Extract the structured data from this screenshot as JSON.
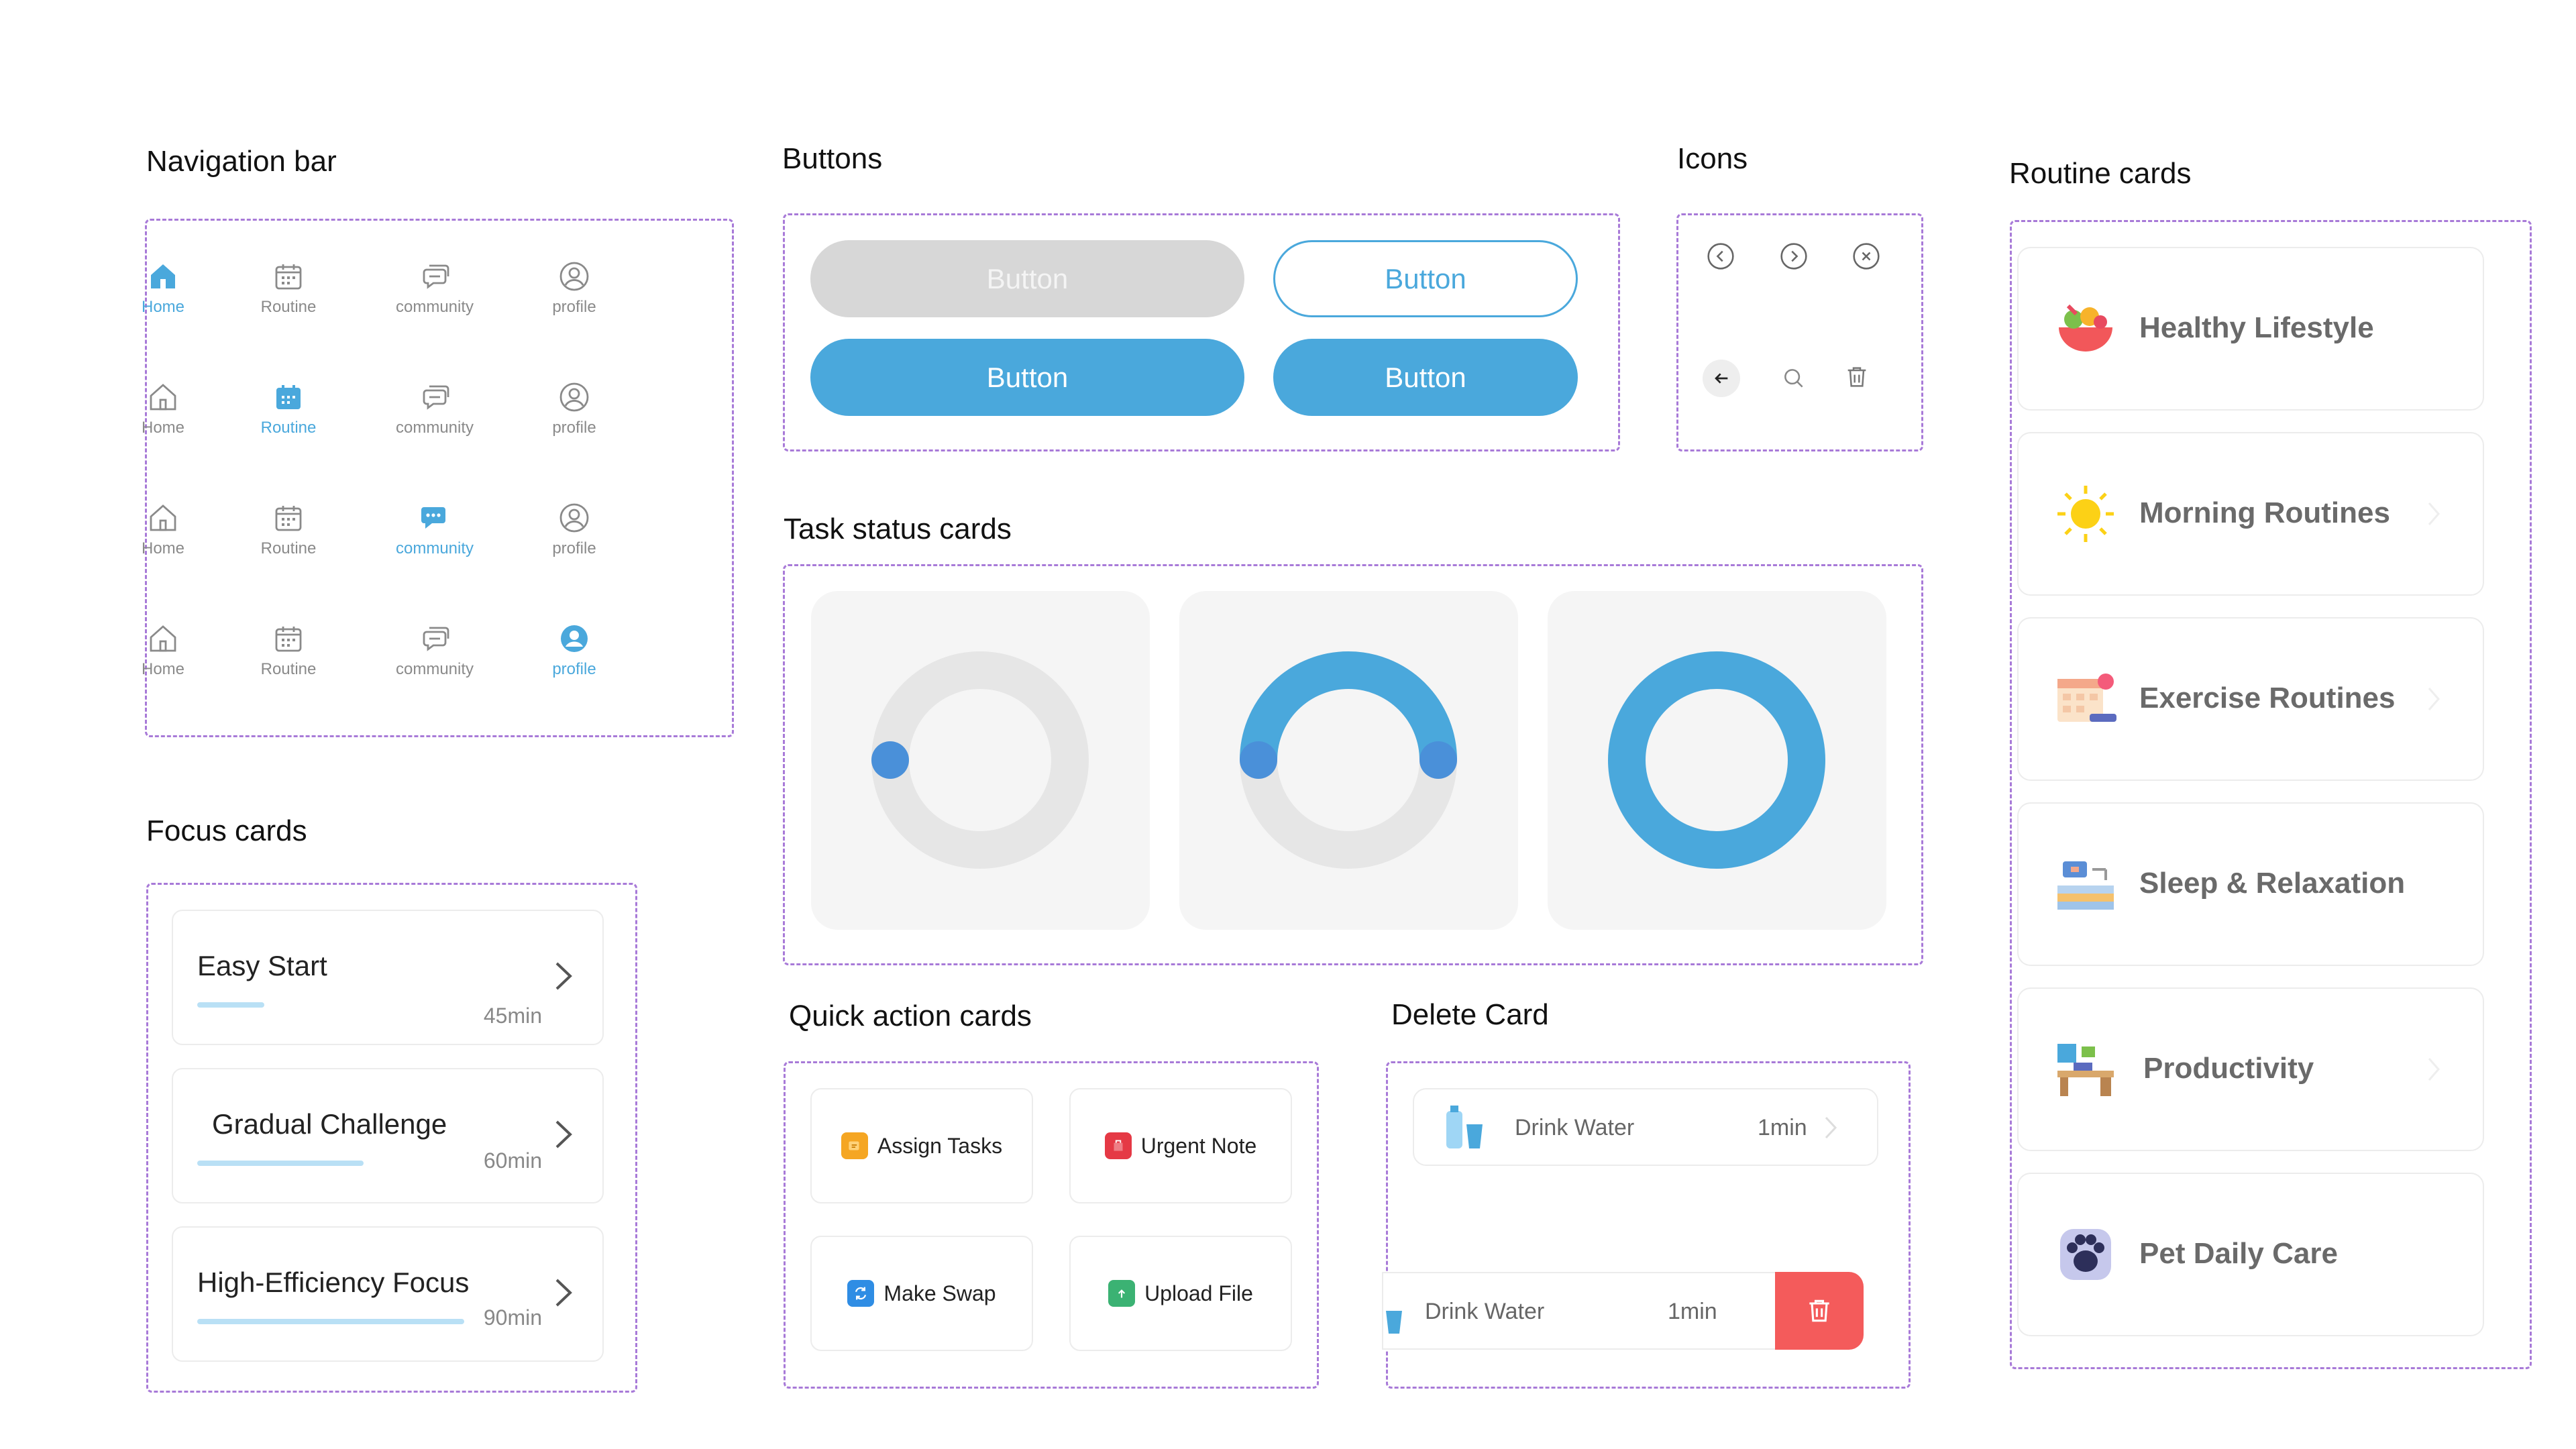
{
  "sections": {
    "navigation_bar": "Navigation bar",
    "buttons": "Buttons",
    "icons": "Icons",
    "routine_cards": "Routine cards",
    "task_status_cards": "Task status cards",
    "focus_cards": "Focus cards",
    "quick_action_cards": "Quick action cards",
    "delete_card": "Delete Card"
  },
  "nav": {
    "labels": [
      "Home",
      "Routine",
      "community",
      "profile"
    ],
    "active_color": "#4aa8dc",
    "inactive_color": "#8a8a8a"
  },
  "buttons": {
    "disabled_label": "Button",
    "outline_label": "Button",
    "primary_label": "Button",
    "secondary_label": "Button",
    "primary_color": "#4aa8dc"
  },
  "icons": [
    "chevron-left-circle-icon",
    "chevron-right-circle-icon",
    "close-circle-icon",
    "back-arrow-icon",
    "search-icon",
    "trash-icon"
  ],
  "task_status": [
    {
      "state": "not-started",
      "progress": 0
    },
    {
      "state": "in-progress",
      "progress": 0.5
    },
    {
      "state": "complete",
      "progress": 1
    }
  ],
  "focus_cards": [
    {
      "title": "Easy Start",
      "duration": "45min",
      "progress": 0.15
    },
    {
      "title": "Gradual Challenge",
      "duration": "60min",
      "progress": 0.4
    },
    {
      "title": "High-Efficiency Focus",
      "duration": "90min",
      "progress": 0.65
    }
  ],
  "quick_actions": [
    {
      "label": "Assign Tasks",
      "icon": "assign-tasks-icon",
      "color": "#f5a623"
    },
    {
      "label": "Urgent Note",
      "icon": "urgent-note-icon",
      "color": "#e53945"
    },
    {
      "label": "Make Swap",
      "icon": "swap-icon",
      "color": "#2f8de4"
    },
    {
      "label": "Upload File",
      "icon": "upload-file-icon",
      "color": "#3bb273"
    }
  ],
  "delete_card": {
    "item_name": "Drink Water",
    "item_duration": "1min",
    "swiped_name": "Drink Water",
    "swiped_duration": "1min",
    "delete_color": "#f45b5b"
  },
  "routines": [
    {
      "label": "Healthy Lifestyle",
      "icon": "salad-bowl-icon"
    },
    {
      "label": "Morning Routines",
      "icon": "sun-icon"
    },
    {
      "label": "Exercise Routines",
      "icon": "calendar-dumbbell-icon"
    },
    {
      "label": "Sleep & Relaxation",
      "icon": "bed-lamp-icon"
    },
    {
      "label": "Productivity",
      "icon": "desk-icon"
    },
    {
      "label": "Pet Daily Care",
      "icon": "paw-icon"
    }
  ]
}
